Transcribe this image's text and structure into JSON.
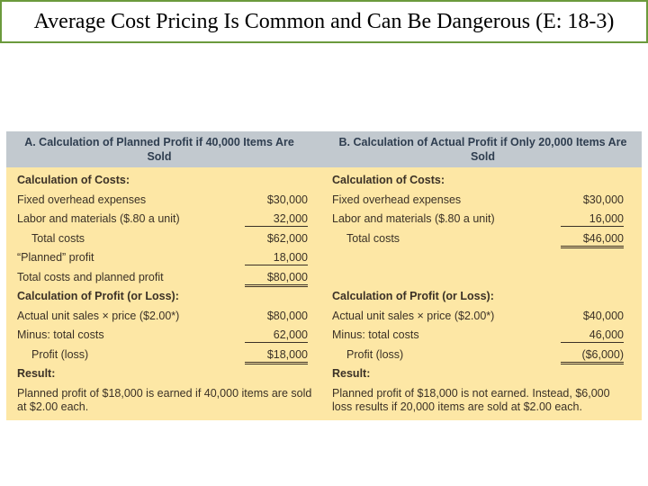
{
  "title": "Average Cost Pricing Is Common and Can Be Dangerous (E: 18-3)",
  "table": {
    "header_a": "A. Calculation of Planned Profit if 40,000 Items Are Sold",
    "header_b": "B. Calculation of Actual Profit if Only 20,000 Items Are Sold",
    "col_a": {
      "costs_heading": "Calculation of Costs:",
      "fixed_label": "Fixed overhead expenses",
      "fixed_amt": "$30,000",
      "labor_label": "Labor and materials ($.80 a unit)",
      "labor_amt": "32,000",
      "total_label": "Total costs",
      "total_amt": "$62,000",
      "planned_label": "“Planned” profit",
      "planned_amt": "18,000",
      "tcpp_label": "Total costs and planned profit",
      "tcpp_amt": "$80,000",
      "profit_heading": "Calculation of Profit (or Loss):",
      "sales_label": "Actual unit sales × price ($2.00*)",
      "sales_amt": "$80,000",
      "minus_label": "Minus: total costs",
      "minus_amt": "62,000",
      "pl_label": "Profit (loss)",
      "pl_amt": "$18,000",
      "result_heading": "Result:",
      "result_text": "Planned profit of $18,000 is earned if 40,000 items are sold at $2.00 each."
    },
    "col_b": {
      "costs_heading": "Calculation of Costs:",
      "fixed_label": "Fixed overhead expenses",
      "fixed_amt": "$30,000",
      "labor_label": "Labor and materials ($.80 a unit)",
      "labor_amt": "16,000",
      "total_label": "Total costs",
      "total_amt": "$46,000",
      "profit_heading": "Calculation of Profit (or Loss):",
      "sales_label": "Actual unit sales × price ($2.00*)",
      "sales_amt": "$40,000",
      "minus_label": "Minus: total costs",
      "minus_amt": "46,000",
      "pl_label": "Profit (loss)",
      "pl_amt": "($6,000)",
      "result_heading": "Result:",
      "result_text": "Planned profit of $18,000 is not earned. Instead, $6,000 loss results if 20,000 items are sold at $2.00 each."
    }
  },
  "colors": {
    "title_border": "#6b9a3c",
    "table_bg": "#fde7a5",
    "header_bg": "#c2c9cf"
  }
}
